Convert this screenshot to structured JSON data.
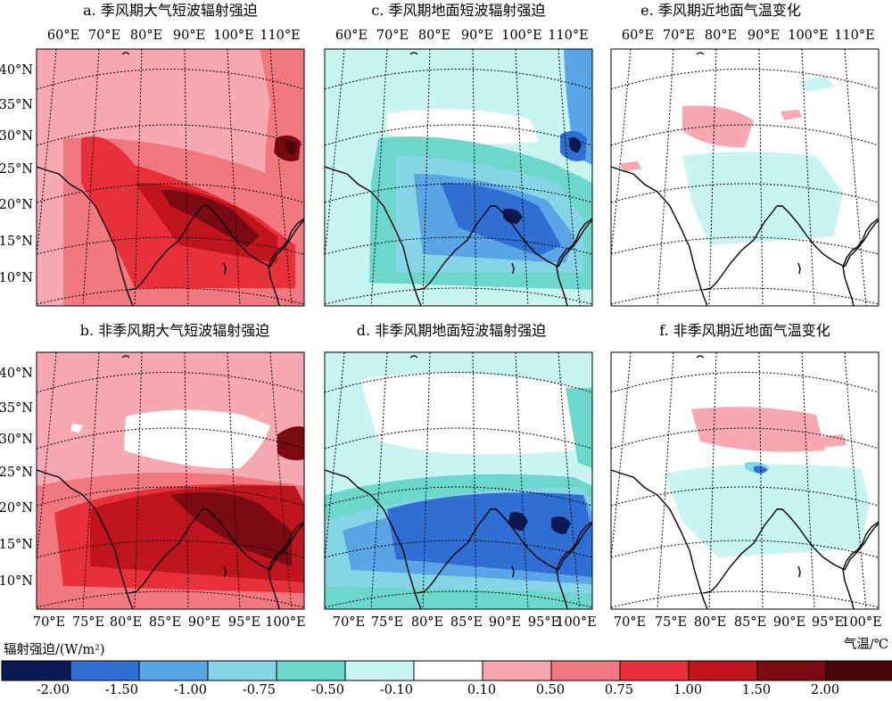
{
  "panels": [
    {
      "id": "a",
      "title": "a. 季风期大气短波辐射强迫",
      "kind": "atm_monsoon"
    },
    {
      "id": "c",
      "title": "c. 季风期地面短波辐射强迫",
      "kind": "sfc_monsoon"
    },
    {
      "id": "e",
      "title": "e. 季风期近地面气温变化",
      "kind": "temp_monsoon"
    },
    {
      "id": "b",
      "title": "b. 非季风期大气短波辐射强迫",
      "kind": "atm_non"
    },
    {
      "id": "d",
      "title": "d. 非季风期地面短波辐射强迫",
      "kind": "sfc_non"
    },
    {
      "id": "f",
      "title": "f. 非季风期近地面气温变化",
      "kind": "temp_non"
    }
  ],
  "top_lon_labels": [
    "60°E",
    "70°E",
    "80°E",
    "90°E",
    "100°E",
    "110°E"
  ],
  "bottom_lon_labels": [
    "70°E",
    "75°E",
    "80°E",
    "85°E",
    "90°E",
    "95°E",
    "100°E"
  ],
  "lat_labels": [
    "40°N",
    "35°N",
    "30°N",
    "25°N",
    "20°N",
    "15°N",
    "10°N"
  ],
  "colorbar": {
    "left_label": "辐射强迫/(W/m²)",
    "right_label": "气温/℃",
    "colors": [
      "#0b1a55",
      "#2f6fd4",
      "#5aa5e6",
      "#86d5e6",
      "#6cd8cc",
      "#c8f5f2",
      "#ffffff",
      "#f7a8b0",
      "#f27880",
      "#e8303a",
      "#c0141e",
      "#7c0a12",
      "#4a060b"
    ],
    "tick_labels": [
      "-2.00",
      "-1.50",
      "-1.00",
      "-0.75",
      "-0.50",
      "-0.10",
      "0.10",
      "0.50",
      "0.75",
      "1.00",
      "1.50",
      "2.00"
    ]
  }
}
